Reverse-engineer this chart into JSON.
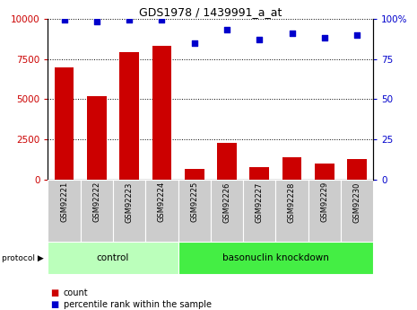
{
  "title": "GDS1978 / 1439991_a_at",
  "samples": [
    "GSM92221",
    "GSM92222",
    "GSM92223",
    "GSM92224",
    "GSM92225",
    "GSM92226",
    "GSM92227",
    "GSM92228",
    "GSM92229",
    "GSM92230"
  ],
  "counts": [
    7000,
    5200,
    7900,
    8300,
    700,
    2300,
    800,
    1400,
    1000,
    1300
  ],
  "percentile_ranks": [
    99,
    98,
    99,
    99,
    85,
    93,
    87,
    91,
    88,
    90
  ],
  "bar_color": "#cc0000",
  "dot_color": "#0000cc",
  "ylim_left": [
    0,
    10000
  ],
  "ylim_right": [
    0,
    100
  ],
  "yticks_left": [
    0,
    2500,
    5000,
    7500,
    10000
  ],
  "yticks_right": [
    0,
    25,
    50,
    75,
    100
  ],
  "groups": [
    {
      "label": "control",
      "indices": [
        0,
        1,
        2,
        3
      ],
      "color": "#bbffbb"
    },
    {
      "label": "basonuclin knockdown",
      "indices": [
        4,
        5,
        6,
        7,
        8,
        9
      ],
      "color": "#44ee44"
    }
  ],
  "protocol_label": "protocol",
  "legend_count_label": "count",
  "legend_percentile_label": "percentile rank within the sample",
  "tick_label_bg": "#cccccc",
  "dotted_grid_color": "#000000"
}
